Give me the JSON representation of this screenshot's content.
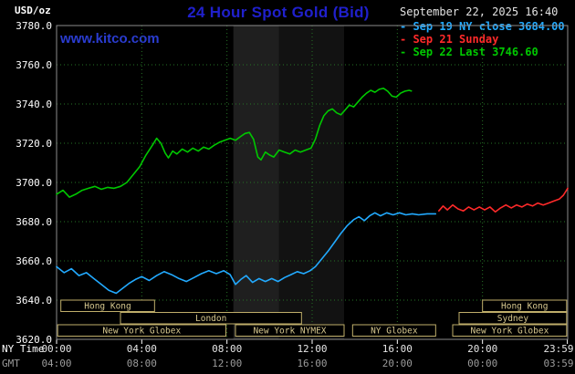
{
  "header": {
    "unit_label": "USD/oz",
    "title": "24 Hour Spot Gold (Bid)",
    "datetime": "September 22, 2025 16:40",
    "watermark": "www.kitco.com",
    "legend": [
      {
        "label": "- Sep 19 NY close 3684.00",
        "color": "#22aaff"
      },
      {
        "label": "- Sep 21 Sunday",
        "color": "#ff2a2a"
      },
      {
        "label": "- Sep 22 Last 3746.60",
        "color": "#00c800"
      }
    ]
  },
  "axis_footer": {
    "ny_label": "NY Time",
    "gmt_label": "GMT"
  },
  "colors": {
    "background": "#000000",
    "title": "#2020cc",
    "watermark": "#2a3cd0",
    "datetime_text": "#e3e3e3",
    "axis_text": "#ffffff",
    "gmt_text": "#9b9b9b",
    "grid": "#267326",
    "border": "#8c8c8c",
    "session_box": "#bfae6a",
    "session_text": "#d6c78e"
  },
  "chart_data": {
    "type": "line",
    "title": "24 Hour Spot Gold (Bid)",
    "xlabel": "NY Time",
    "ylabel": "USD/oz",
    "ylim": [
      3620,
      3780
    ],
    "grid": "dotted",
    "legend_position": "top-right",
    "grid_color": "#267326",
    "border_color": "#8c8c8c",
    "session_box_color": "#bfae6a",
    "session_label_color": "#d6c78e",
    "axis_text_color": "#ffffff",
    "gmt_text_color": "#9b9b9b",
    "x_axis": {
      "range_hours": [
        0,
        24
      ],
      "ticks": [
        {
          "hour": 0,
          "ny": "00:00",
          "gmt": "04:00"
        },
        {
          "hour": 4,
          "ny": "04:00",
          "gmt": "08:00"
        },
        {
          "hour": 8,
          "ny": "08:00",
          "gmt": "12:00"
        },
        {
          "hour": 12,
          "ny": "12:00",
          "gmt": "16:00"
        },
        {
          "hour": 16,
          "ny": "16:00",
          "gmt": "20:00"
        },
        {
          "hour": 20,
          "ny": "20:00",
          "gmt": "00:00"
        },
        {
          "hour": 23.983,
          "ny": "23:59",
          "gmt": "03:59"
        }
      ]
    },
    "y_axis": {
      "range": [
        3620,
        3780
      ],
      "tick_step": 20
    },
    "bands": [
      {
        "from": 8.3,
        "to": 10.45,
        "color": "#1f1f1f"
      },
      {
        "from": 10.45,
        "to": 13.5,
        "color": "#121212"
      }
    ],
    "sessions": {
      "rows": [
        [
          {
            "label": "Hong Kong",
            "from": 0.2,
            "to": 4.6
          },
          {
            "label": "Hong Kong",
            "from": 20.0,
            "to": 23.95
          }
        ],
        [
          {
            "label": "London",
            "from": 3.0,
            "to": 11.5
          },
          {
            "label": "Sydney",
            "from": 18.9,
            "to": 23.95
          }
        ],
        [
          {
            "label": "New York Globex",
            "from": 0.05,
            "to": 7.95
          },
          {
            "label": "New York NYMEX",
            "from": 8.4,
            "to": 13.5
          },
          {
            "label": "NY Globex",
            "from": 13.9,
            "to": 17.8
          },
          {
            "label": "New York Globex",
            "from": 18.6,
            "to": 23.95
          }
        ]
      ]
    },
    "series": [
      {
        "id": "sep19",
        "name": "Sep 19 NY close 3684.00",
        "color": "#22aaff",
        "points": [
          [
            0,
            3657
          ],
          [
            0.35,
            3654
          ],
          [
            0.7,
            3656
          ],
          [
            1.05,
            3652.5
          ],
          [
            1.4,
            3654
          ],
          [
            1.75,
            3651
          ],
          [
            2.1,
            3648
          ],
          [
            2.45,
            3645
          ],
          [
            2.8,
            3643.5
          ],
          [
            3.1,
            3646
          ],
          [
            3.4,
            3648.5
          ],
          [
            3.7,
            3650.5
          ],
          [
            4.0,
            3652
          ],
          [
            4.35,
            3650
          ],
          [
            4.7,
            3652.5
          ],
          [
            5.05,
            3654.5
          ],
          [
            5.4,
            3653
          ],
          [
            5.75,
            3651
          ],
          [
            6.1,
            3649.5
          ],
          [
            6.45,
            3651.5
          ],
          [
            6.8,
            3653.5
          ],
          [
            7.15,
            3655
          ],
          [
            7.5,
            3653.5
          ],
          [
            7.85,
            3655
          ],
          [
            8.15,
            3653
          ],
          [
            8.4,
            3648
          ],
          [
            8.65,
            3650.5
          ],
          [
            8.9,
            3652.5
          ],
          [
            9.2,
            3649
          ],
          [
            9.5,
            3651
          ],
          [
            9.8,
            3649.5
          ],
          [
            10.1,
            3651
          ],
          [
            10.4,
            3649.5
          ],
          [
            10.7,
            3651.5
          ],
          [
            11.0,
            3653
          ],
          [
            11.3,
            3654.5
          ],
          [
            11.6,
            3653.5
          ],
          [
            11.9,
            3655
          ],
          [
            12.15,
            3657
          ],
          [
            12.45,
            3661
          ],
          [
            12.75,
            3665
          ],
          [
            13.05,
            3669.5
          ],
          [
            13.35,
            3674
          ],
          [
            13.65,
            3678
          ],
          [
            13.95,
            3681
          ],
          [
            14.2,
            3682.5
          ],
          [
            14.45,
            3680.5
          ],
          [
            14.7,
            3683
          ],
          [
            14.95,
            3684.5
          ],
          [
            15.2,
            3683
          ],
          [
            15.5,
            3684.5
          ],
          [
            15.8,
            3683.5
          ],
          [
            16.1,
            3684.5
          ],
          [
            16.4,
            3683.5
          ],
          [
            16.7,
            3684
          ],
          [
            17.0,
            3683.5
          ],
          [
            17.4,
            3684
          ],
          [
            17.8,
            3684
          ]
        ]
      },
      {
        "id": "sep21",
        "name": "Sep 21 Sunday",
        "color": "#ff2a2a",
        "points": [
          [
            17.95,
            3685.5
          ],
          [
            18.15,
            3688
          ],
          [
            18.35,
            3686
          ],
          [
            18.6,
            3688.5
          ],
          [
            18.85,
            3686.5
          ],
          [
            19.1,
            3685.5
          ],
          [
            19.35,
            3687.5
          ],
          [
            19.6,
            3686
          ],
          [
            19.85,
            3687.5
          ],
          [
            20.1,
            3686
          ],
          [
            20.35,
            3687.5
          ],
          [
            20.6,
            3685
          ],
          [
            20.85,
            3687
          ],
          [
            21.1,
            3688.5
          ],
          [
            21.35,
            3687
          ],
          [
            21.6,
            3688.5
          ],
          [
            21.85,
            3687.5
          ],
          [
            22.1,
            3689
          ],
          [
            22.35,
            3688
          ],
          [
            22.6,
            3689.5
          ],
          [
            22.85,
            3688.5
          ],
          [
            23.1,
            3689.5
          ],
          [
            23.35,
            3690.5
          ],
          [
            23.6,
            3691.5
          ],
          [
            23.8,
            3693.5
          ],
          [
            24,
            3697
          ]
        ]
      },
      {
        "id": "sep22",
        "name": "Sep 22 Last 3746.60",
        "color": "#00c800",
        "points": [
          [
            0,
            3694
          ],
          [
            0.3,
            3696
          ],
          [
            0.6,
            3692.5
          ],
          [
            0.9,
            3694
          ],
          [
            1.2,
            3696
          ],
          [
            1.5,
            3697
          ],
          [
            1.8,
            3698
          ],
          [
            2.1,
            3696.5
          ],
          [
            2.4,
            3697.5
          ],
          [
            2.7,
            3697
          ],
          [
            3.0,
            3698
          ],
          [
            3.3,
            3700
          ],
          [
            3.6,
            3704
          ],
          [
            3.9,
            3708
          ],
          [
            4.2,
            3714
          ],
          [
            4.5,
            3719
          ],
          [
            4.7,
            3722.5
          ],
          [
            4.9,
            3720
          ],
          [
            5.1,
            3715
          ],
          [
            5.25,
            3712.5
          ],
          [
            5.45,
            3716
          ],
          [
            5.65,
            3714.5
          ],
          [
            5.9,
            3717
          ],
          [
            6.15,
            3715.5
          ],
          [
            6.4,
            3717.5
          ],
          [
            6.65,
            3716
          ],
          [
            6.9,
            3718
          ],
          [
            7.15,
            3717
          ],
          [
            7.4,
            3719
          ],
          [
            7.65,
            3720.5
          ],
          [
            7.9,
            3721.5
          ],
          [
            8.15,
            3722.5
          ],
          [
            8.4,
            3721.5
          ],
          [
            8.65,
            3723.5
          ],
          [
            8.85,
            3725
          ],
          [
            9.05,
            3725.5
          ],
          [
            9.25,
            3722
          ],
          [
            9.45,
            3713
          ],
          [
            9.6,
            3711.5
          ],
          [
            9.8,
            3715.5
          ],
          [
            10.0,
            3714
          ],
          [
            10.2,
            3713
          ],
          [
            10.45,
            3716.5
          ],
          [
            10.7,
            3715.5
          ],
          [
            10.95,
            3714.5
          ],
          [
            11.2,
            3716.5
          ],
          [
            11.45,
            3715.5
          ],
          [
            11.7,
            3716.5
          ],
          [
            11.95,
            3717.5
          ],
          [
            12.15,
            3722
          ],
          [
            12.35,
            3729
          ],
          [
            12.55,
            3734
          ],
          [
            12.75,
            3736.5
          ],
          [
            12.95,
            3737.5
          ],
          [
            13.15,
            3735.5
          ],
          [
            13.35,
            3734.5
          ],
          [
            13.55,
            3737
          ],
          [
            13.75,
            3739.5
          ],
          [
            13.95,
            3738.5
          ],
          [
            14.15,
            3741
          ],
          [
            14.35,
            3743.5
          ],
          [
            14.55,
            3745.5
          ],
          [
            14.75,
            3747
          ],
          [
            14.95,
            3746
          ],
          [
            15.15,
            3747.5
          ],
          [
            15.35,
            3748
          ],
          [
            15.55,
            3746.5
          ],
          [
            15.75,
            3744
          ],
          [
            15.95,
            3743.5
          ],
          [
            16.15,
            3745.5
          ],
          [
            16.35,
            3746.5
          ],
          [
            16.55,
            3747
          ],
          [
            16.66,
            3746.6
          ]
        ]
      }
    ]
  }
}
